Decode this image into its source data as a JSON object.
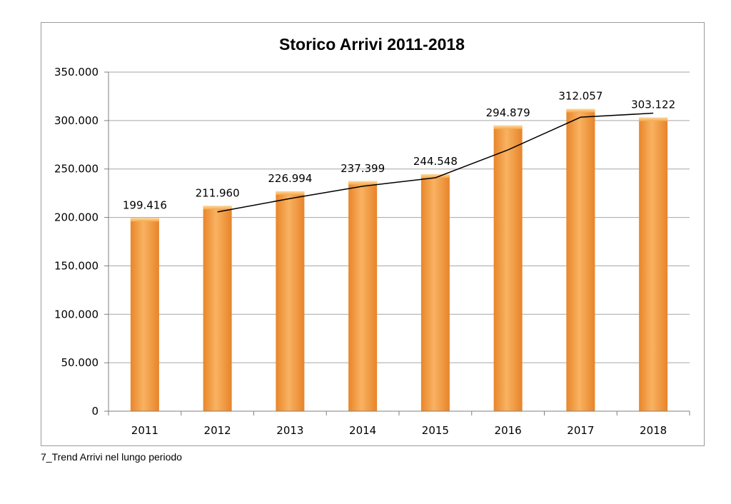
{
  "chart_data": {
    "type": "bar",
    "title": "Storico Arrivi 2011-2018",
    "categories": [
      "2011",
      "2012",
      "2013",
      "2014",
      "2015",
      "2016",
      "2017",
      "2018"
    ],
    "values": [
      199416,
      211960,
      226994,
      237399,
      244548,
      294879,
      312057,
      303122
    ],
    "value_labels": [
      "199.416",
      "211.960",
      "226.994",
      "237.399",
      "244.548",
      "294.879",
      "312.057",
      "303.122"
    ],
    "ylim": [
      0,
      350000
    ],
    "yticks": [
      0,
      50000,
      100000,
      150000,
      200000,
      250000,
      300000,
      350000
    ],
    "ytick_labels": [
      "0",
      "50.000",
      "100.000",
      "150.000",
      "200.000",
      "250.000",
      "300.000",
      "350.000"
    ],
    "xlabel": "",
    "ylabel": "",
    "grid": true,
    "trendline": {
      "type": "moving-average-2",
      "values": [
        null,
        205688,
        219477,
        232197,
        240974,
        269714,
        303468,
        307590
      ]
    },
    "colors": {
      "bar": "#f5a03c",
      "bar_dark": "#e07c1e",
      "bar_light": "#fbc37a",
      "grid": "#a6a6a6",
      "trend": "#000000"
    }
  },
  "caption": "7_Trend Arrivi nel lungo periodo"
}
